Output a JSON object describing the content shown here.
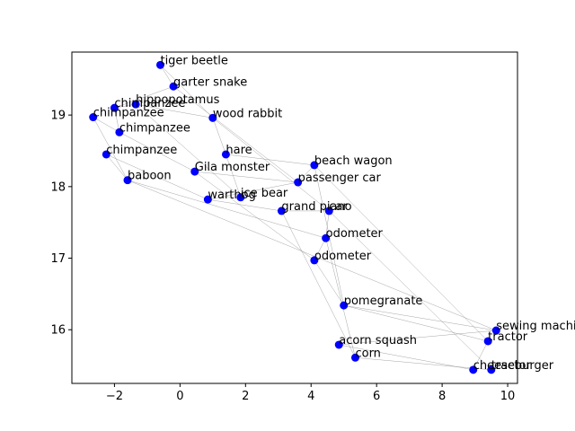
{
  "chart_data": {
    "type": "scatter",
    "title": "",
    "xlabel": "",
    "ylabel": "",
    "xlim": [
      -3.3,
      10.3
    ],
    "ylim": [
      15.25,
      19.88
    ],
    "xticks": [
      -2,
      0,
      2,
      4,
      6,
      8,
      10
    ],
    "yticks": [
      16,
      17,
      18,
      19
    ],
    "grid": false,
    "legend": "none",
    "colors": {
      "point": "#0000ff",
      "edge": "#808080"
    },
    "points": [
      {
        "label": "tiger beetle",
        "x": -0.6,
        "y": 19.7
      },
      {
        "label": "garter snake",
        "x": -0.2,
        "y": 19.4
      },
      {
        "label": "hippopotamus",
        "x": -1.35,
        "y": 19.15
      },
      {
        "label": "chimpanzee",
        "x": -2.0,
        "y": 19.1
      },
      {
        "label": "chimpanzee",
        "x": -2.65,
        "y": 18.97
      },
      {
        "label": "chimpanzee",
        "x": -1.85,
        "y": 18.76
      },
      {
        "label": "wood rabbit",
        "x": 1.0,
        "y": 18.96
      },
      {
        "label": "chimpanzee",
        "x": -2.25,
        "y": 18.45
      },
      {
        "label": "hare",
        "x": 1.4,
        "y": 18.45
      },
      {
        "label": "beach wagon",
        "x": 4.1,
        "y": 18.3
      },
      {
        "label": "Gila monster",
        "x": 0.45,
        "y": 18.21
      },
      {
        "label": "baboon",
        "x": -1.6,
        "y": 18.09
      },
      {
        "label": "passenger car",
        "x": 3.6,
        "y": 18.06
      },
      {
        "label": "ice bear",
        "x": 1.85,
        "y": 17.85
      },
      {
        "label": "warthog",
        "x": 0.85,
        "y": 17.82
      },
      {
        "label": "grand piano",
        "x": 3.1,
        "y": 17.66
      },
      {
        "label": "car",
        "x": 4.55,
        "y": 17.66
      },
      {
        "label": "odometer",
        "x": 4.45,
        "y": 17.28
      },
      {
        "label": "odometer",
        "x": 4.1,
        "y": 16.97
      },
      {
        "label": "pomegranate",
        "x": 5.0,
        "y": 16.34
      },
      {
        "label": "sewing machine",
        "x": 9.65,
        "y": 15.99
      },
      {
        "label": "tractor",
        "x": 9.4,
        "y": 15.84
      },
      {
        "label": "acorn squash",
        "x": 4.85,
        "y": 15.79
      },
      {
        "label": "corn",
        "x": 5.35,
        "y": 15.61
      },
      {
        "label": "cheeseburger",
        "x": 8.95,
        "y": 15.44
      },
      {
        "label": "tractor",
        "x": 9.5,
        "y": 15.44
      }
    ],
    "edges": [
      [
        0,
        1
      ],
      [
        0,
        6
      ],
      [
        1,
        3
      ],
      [
        1,
        12
      ],
      [
        2,
        3
      ],
      [
        2,
        6
      ],
      [
        2,
        13
      ],
      [
        3,
        5
      ],
      [
        4,
        5
      ],
      [
        4,
        11
      ],
      [
        5,
        10
      ],
      [
        6,
        8
      ],
      [
        6,
        16
      ],
      [
        7,
        11
      ],
      [
        7,
        14
      ],
      [
        8,
        9
      ],
      [
        8,
        13
      ],
      [
        9,
        12
      ],
      [
        9,
        19
      ],
      [
        10,
        18
      ],
      [
        10,
        12
      ],
      [
        11,
        20
      ],
      [
        11,
        17
      ],
      [
        12,
        14
      ],
      [
        14,
        15
      ],
      [
        15,
        16
      ],
      [
        15,
        23
      ],
      [
        16,
        17
      ],
      [
        16,
        25
      ],
      [
        17,
        18
      ],
      [
        17,
        23
      ],
      [
        18,
        19
      ],
      [
        19,
        20
      ],
      [
        19,
        21
      ],
      [
        20,
        22
      ],
      [
        21,
        24
      ],
      [
        22,
        24
      ],
      [
        23,
        25
      ],
      [
        9,
        21
      ]
    ]
  }
}
